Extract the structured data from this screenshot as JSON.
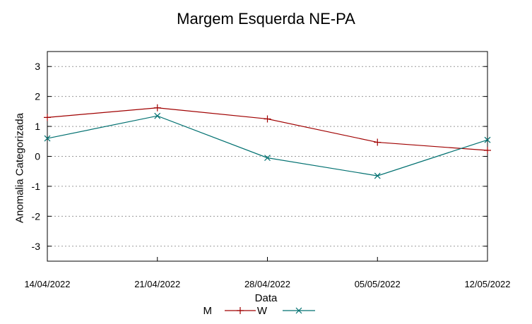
{
  "chart_data": {
    "type": "line",
    "title": "Margem Esquerda NE-PA",
    "xlabel": "Data",
    "ylabel": "Anomalia Categorizada",
    "categories": [
      "14/04/2022",
      "21/04/2022",
      "28/04/2022",
      "05/05/2022",
      "12/05/2022"
    ],
    "yticks": [
      3,
      2,
      1,
      0,
      -1,
      -2,
      -3
    ],
    "ylim": [
      -3.5,
      3.5
    ],
    "grid": true,
    "legend_position": "bottom",
    "series": [
      {
        "name": "M",
        "color": "#a00000",
        "marker": "+",
        "values": [
          1.3,
          1.62,
          1.25,
          0.47,
          0.2
        ]
      },
      {
        "name": "W",
        "color": "#007070",
        "marker": "x",
        "values": [
          0.6,
          1.35,
          -0.05,
          -0.65,
          0.55
        ]
      }
    ]
  }
}
